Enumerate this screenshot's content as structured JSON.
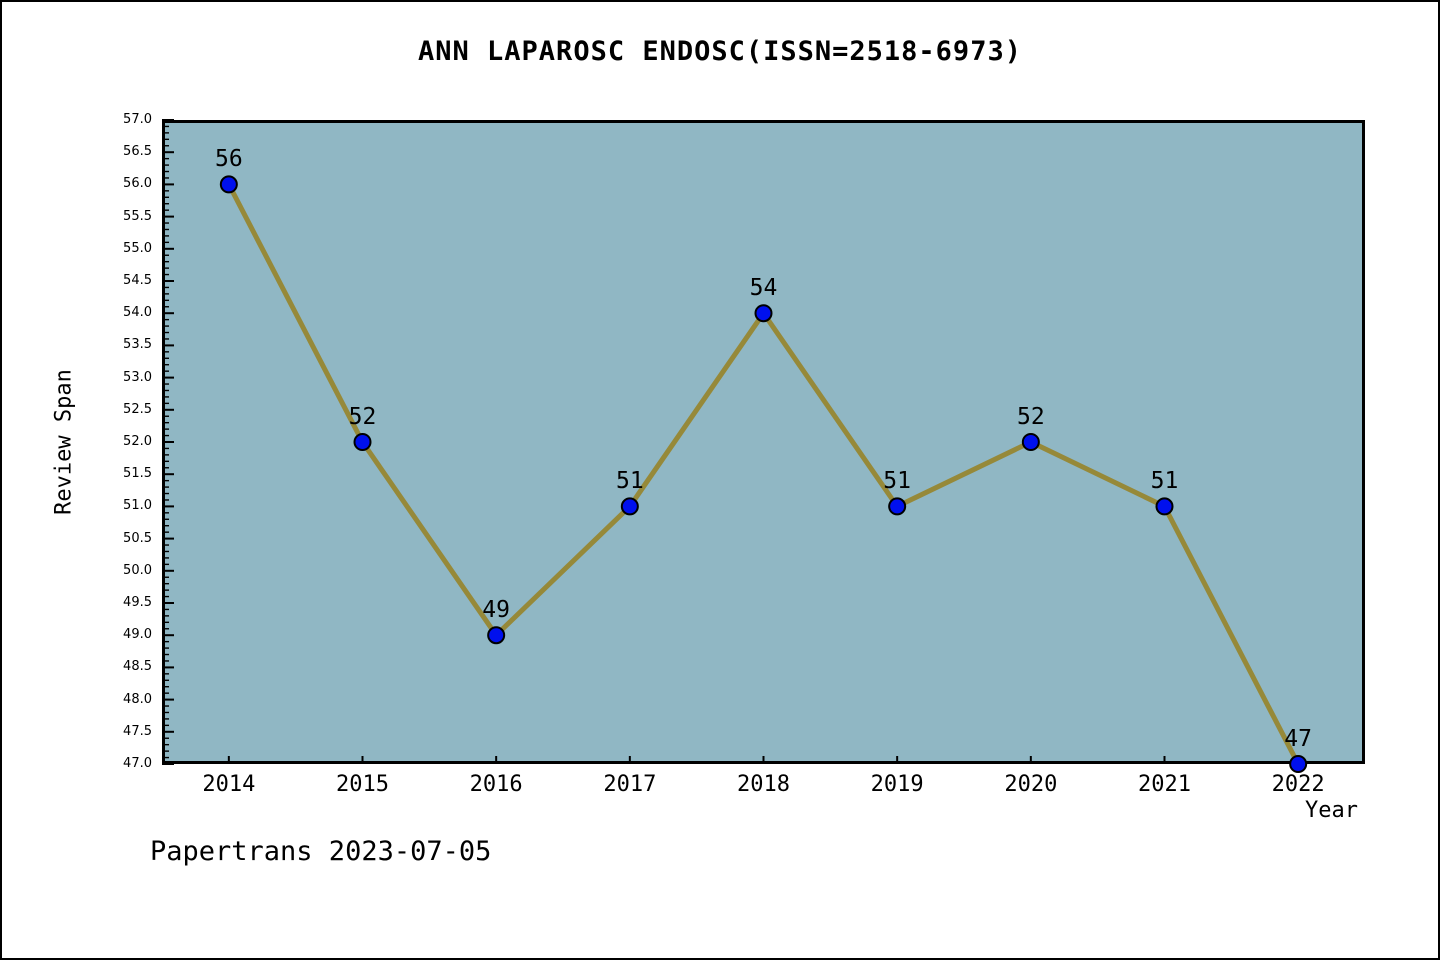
{
  "page": {
    "footer": "Papertrans 2023-07-05"
  },
  "chart_data": {
    "type": "line",
    "title": "ANN LAPAROSC ENDOSC(ISSN=2518-6973)",
    "xlabel": "Year",
    "ylabel": "Review Span",
    "x": [
      2014,
      2015,
      2016,
      2017,
      2018,
      2019,
      2020,
      2021,
      2022
    ],
    "values": [
      56,
      52,
      49,
      51,
      54,
      51,
      52,
      51,
      47
    ],
    "point_labels": [
      "56",
      "52",
      "49",
      "51",
      "54",
      "51",
      "52",
      "51",
      "47"
    ],
    "x_tick_labels": [
      "2014",
      "2015",
      "2016",
      "2017",
      "2018",
      "2019",
      "2020",
      "2021",
      "2022"
    ],
    "y_tick_labels": [
      "57.0",
      "56.5",
      "56.0",
      "55.5",
      "55.0",
      "54.5",
      "54.0",
      "53.5",
      "53.0",
      "52.5",
      "52.0",
      "51.5",
      "51.0",
      "50.5",
      "50.0",
      "49.5",
      "49.0",
      "48.5",
      "48.0",
      "47.5",
      "47.0"
    ],
    "ylim": [
      47.0,
      57.0
    ],
    "xlim": [
      2013.5,
      2022.5
    ],
    "y_minor_step": 0.1,
    "grid": false,
    "legend": null,
    "colors": {
      "plot_background": "#90b7c4",
      "line": "#968939",
      "marker_fill": "#0010ee",
      "marker_edge": "#000000",
      "axis": "#000000",
      "text": "#000000",
      "page_background": "#ffffff",
      "page_border": "#000000"
    }
  }
}
